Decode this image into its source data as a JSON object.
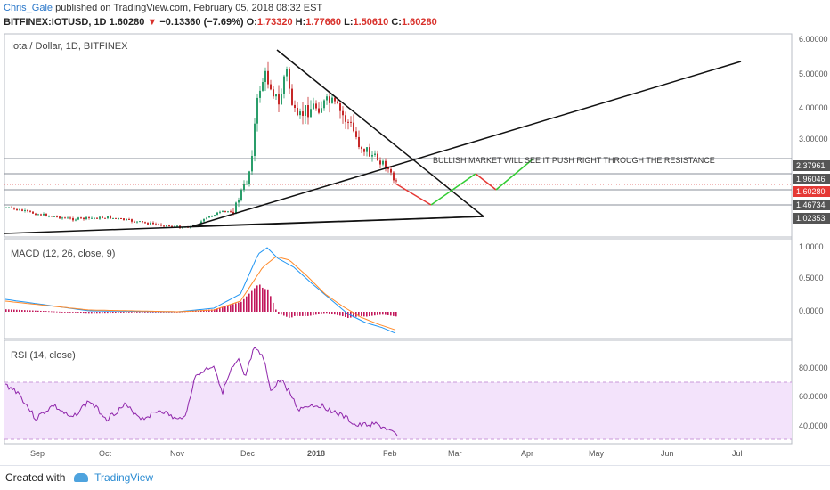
{
  "header": {
    "author": "Chris_Gale",
    "published": "published on TradingView.com, February 05, 2018 08:32 EST",
    "symbol_line_prefix": "BITFINEX:IOTUSD, 1D",
    "last": "1.60280",
    "change": "−0.13360 (−7.69%)",
    "o_label": "O:",
    "o_val": "1.73320",
    "h_label": "H:",
    "h_val": "1.77660",
    "l_label": "L:",
    "l_val": "1.50610",
    "c_label": "C:",
    "c_val": "1.60280"
  },
  "panes": {
    "main_title": "Iota / Dollar, 1D, BITFINEX",
    "macd_title": "MACD (12, 26, close, 9)",
    "rsi_title": "RSI (14, close)"
  },
  "annotation": "BULLISH MARKET WILL SEE IT PUSH RIGHT THROUGH THE RESISTANCE",
  "colors": {
    "up": "#2a9d6a",
    "down": "#c62828",
    "macd": "#2196f3",
    "signal": "#ff8a2a",
    "hist": "#c2185b",
    "rsi": "#8e24aa",
    "rsi_band": "#f3e3fb",
    "proj_red": "#e53935",
    "proj_green": "#33cc33",
    "price_tag_red": "#e53935",
    "price_tag_gray": "#555555"
  },
  "price_axis": [
    "6.00000",
    "5.00000",
    "4.00000",
    "3.00000"
  ],
  "price_tags": [
    {
      "value": "2.37961",
      "kind": "gray"
    },
    {
      "value": "1.96046",
      "kind": "gray"
    },
    {
      "value": "1.60280",
      "kind": "red"
    },
    {
      "value": "1.46734",
      "kind": "gray"
    },
    {
      "value": "1.02353",
      "kind": "gray"
    }
  ],
  "macd_axis": [
    "1.0000",
    "0.5000",
    "0.0000"
  ],
  "rsi_axis": [
    "80.0000",
    "60.0000",
    "40.0000"
  ],
  "time_axis": [
    "Sep",
    "Oct",
    "Nov",
    "Dec",
    "2018",
    "Feb",
    "Mar",
    "Apr",
    "May",
    "Jun",
    "Jul"
  ],
  "footer": {
    "created_with": "Created with",
    "brand": "TradingView"
  }
}
